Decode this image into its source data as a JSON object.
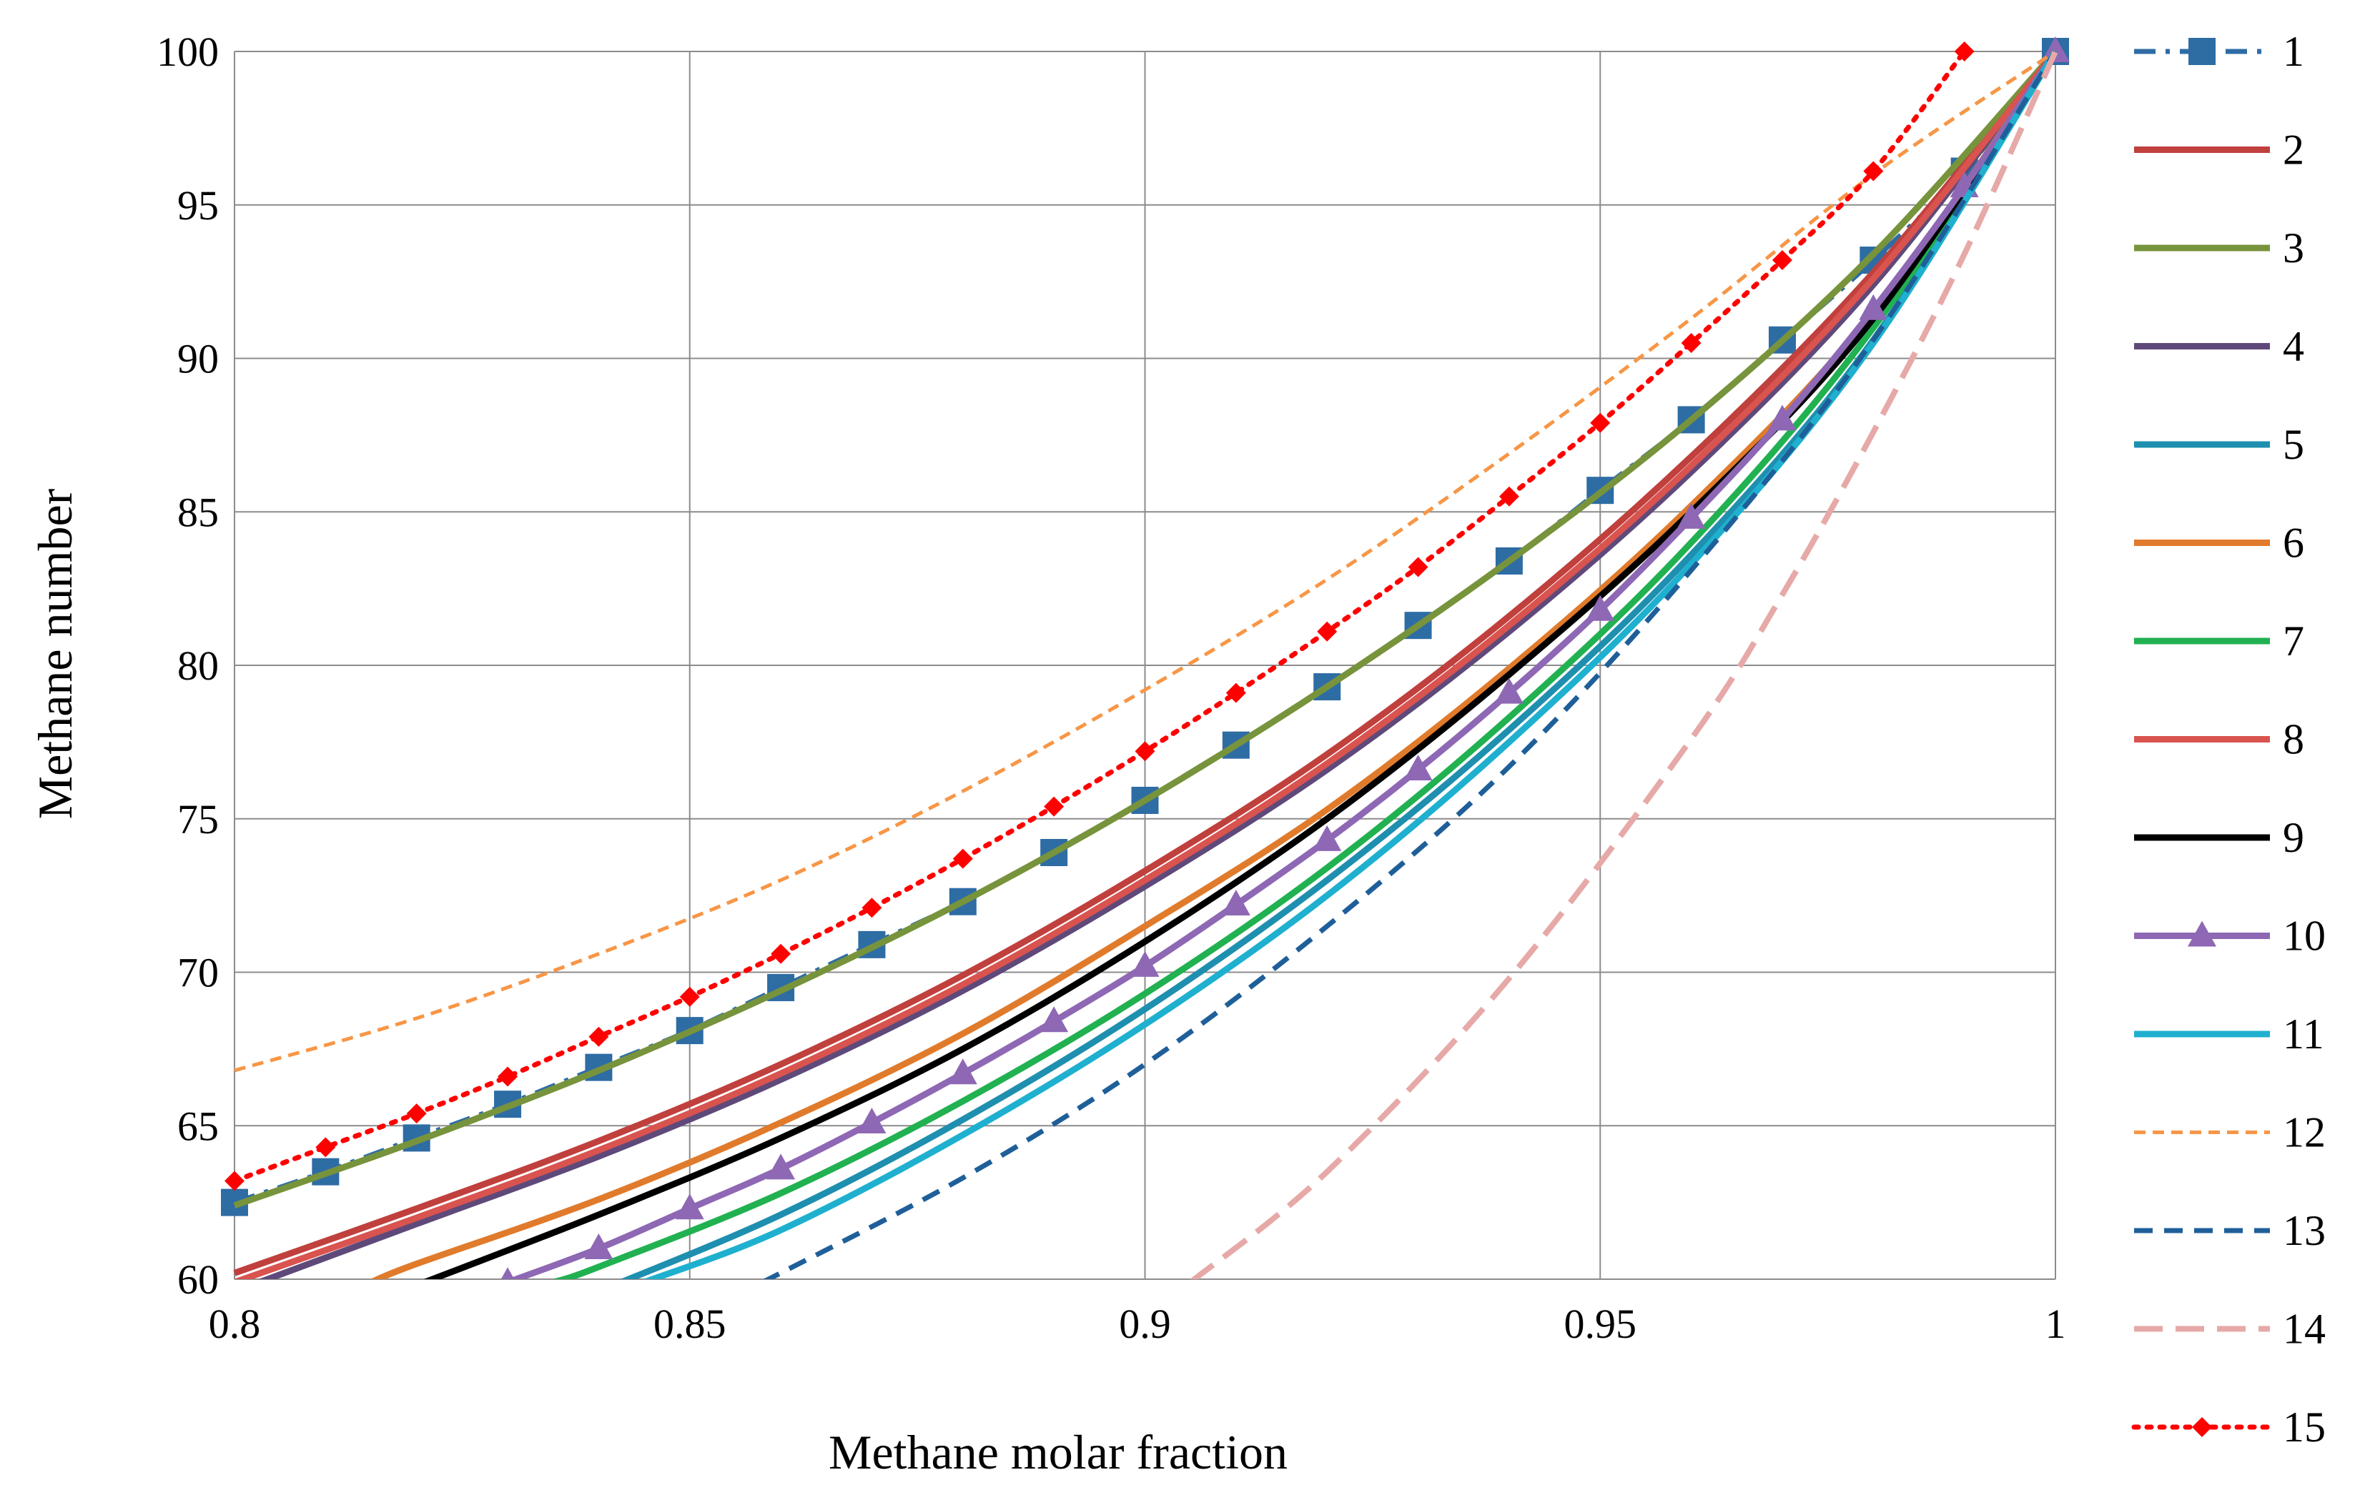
{
  "chart_data": {
    "type": "line",
    "title": "",
    "xlabel": "Methane molar fraction",
    "ylabel": "Methane number",
    "xlim": [
      0.8,
      1.0
    ],
    "ylim": [
      60,
      100
    ],
    "grid": true,
    "legend_position": "right",
    "x_ticks": [
      {
        "value": 0.8,
        "label": "0.8"
      },
      {
        "value": 0.85,
        "label": "0.85"
      },
      {
        "value": 0.9,
        "label": "0.9"
      },
      {
        "value": 0.95,
        "label": "0.95"
      },
      {
        "value": 1.0,
        "label": "1"
      }
    ],
    "y_ticks": [
      {
        "value": 60,
        "label": "60"
      },
      {
        "value": 65,
        "label": "65"
      },
      {
        "value": 70,
        "label": "70"
      },
      {
        "value": 75,
        "label": "75"
      },
      {
        "value": 80,
        "label": "80"
      },
      {
        "value": 85,
        "label": "85"
      },
      {
        "value": 90,
        "label": "90"
      },
      {
        "value": 95,
        "label": "95"
      },
      {
        "value": 100,
        "label": "100"
      }
    ],
    "series": [
      {
        "name": "1",
        "color": "#2E6CA4",
        "dash": "long-dash-dot",
        "marker": "square",
        "x": [
          0.8,
          0.81,
          0.82,
          0.83,
          0.84,
          0.85,
          0.86,
          0.87,
          0.88,
          0.89,
          0.9,
          0.91,
          0.92,
          0.93,
          0.94,
          0.95,
          0.96,
          0.97,
          0.98,
          0.99,
          1.0
        ],
        "y": [
          62.5,
          63.5,
          64.6,
          65.7,
          66.9,
          68.1,
          69.5,
          70.9,
          72.3,
          73.9,
          75.6,
          77.4,
          79.3,
          81.3,
          83.4,
          85.7,
          88.0,
          90.6,
          93.2,
          96.1,
          100
        ]
      },
      {
        "name": "2",
        "color": "#C0403D",
        "dash": "solid",
        "marker": "none",
        "x": [
          0.8,
          0.82,
          0.84,
          0.86,
          0.88,
          0.9,
          0.92,
          0.94,
          0.96,
          0.98,
          1.0
        ],
        "y": [
          60.2,
          62.3,
          64.5,
          67.0,
          69.9,
          73.3,
          77.1,
          81.6,
          86.8,
          92.8,
          100
        ]
      },
      {
        "name": "3",
        "color": "#77933C",
        "dash": "solid",
        "marker": "none",
        "x": [
          0.8,
          0.82,
          0.84,
          0.86,
          0.88,
          0.9,
          0.92,
          0.94,
          0.96,
          0.98,
          1.0
        ],
        "y": [
          62.4,
          64.5,
          66.8,
          69.4,
          72.3,
          75.6,
          79.3,
          83.4,
          88.0,
          93.4,
          100
        ]
      },
      {
        "name": "4",
        "color": "#5F497A",
        "dash": "solid",
        "marker": "none",
        "x": [
          0.8,
          0.82,
          0.84,
          0.86,
          0.88,
          0.9,
          0.92,
          0.94,
          0.96,
          0.98,
          1.0
        ],
        "y": [
          59.6,
          61.8,
          64.0,
          66.5,
          69.4,
          72.8,
          76.6,
          81.1,
          86.3,
          92.4,
          100
        ]
      },
      {
        "name": "5",
        "color": "#1F8FAF",
        "dash": "solid",
        "marker": "none",
        "x": [
          0.84,
          0.86,
          0.88,
          0.9,
          0.92,
          0.94,
          0.96,
          0.98,
          1.0
        ],
        "y": [
          59.6,
          62.1,
          65.2,
          68.8,
          73.0,
          77.9,
          83.6,
          90.6,
          100
        ]
      },
      {
        "name": "6",
        "color": "#E07B2C",
        "dash": "solid",
        "marker": "none",
        "x": [
          0.815,
          0.82,
          0.84,
          0.86,
          0.88,
          0.9,
          0.92,
          0.94,
          0.96,
          0.98,
          1.0
        ],
        "y": [
          59.9,
          60.5,
          62.6,
          65.1,
          68.0,
          71.5,
          75.3,
          79.9,
          85.2,
          91.5,
          100
        ]
      },
      {
        "name": "7",
        "color": "#21B151",
        "dash": "solid",
        "marker": "none",
        "x": [
          0.835,
          0.84,
          0.86,
          0.88,
          0.9,
          0.92,
          0.94,
          0.96,
          0.98,
          1.0
        ],
        "y": [
          59.9,
          60.4,
          62.8,
          65.8,
          69.3,
          73.4,
          78.3,
          84.0,
          91.0,
          100
        ]
      },
      {
        "name": "8",
        "color": "#D9534F",
        "dash": "solid",
        "marker": "none",
        "x": [
          0.8,
          0.82,
          0.84,
          0.86,
          0.88,
          0.9,
          0.92,
          0.94,
          0.96,
          0.98,
          1.0
        ],
        "y": [
          59.9,
          62.0,
          64.2,
          66.7,
          69.6,
          73.0,
          76.8,
          81.3,
          86.5,
          92.6,
          100
        ]
      },
      {
        "name": "9",
        "color": "#000000",
        "dash": "solid",
        "marker": "none",
        "x": [
          0.82,
          0.84,
          0.86,
          0.88,
          0.9,
          0.92,
          0.94,
          0.96,
          0.98,
          1.0
        ],
        "y": [
          59.8,
          62.1,
          64.6,
          67.5,
          71.0,
          75.0,
          79.7,
          85.0,
          91.3,
          100
        ]
      },
      {
        "name": "10",
        "color": "#8E68B4",
        "dash": "solid",
        "marker": "triangle",
        "x": [
          0.83,
          0.84,
          0.85,
          0.86,
          0.87,
          0.88,
          0.89,
          0.9,
          0.91,
          0.92,
          0.93,
          0.94,
          0.95,
          0.96,
          0.97,
          0.98,
          0.99,
          1.0
        ],
        "y": [
          59.9,
          61.0,
          62.3,
          63.6,
          65.1,
          66.7,
          68.4,
          70.2,
          72.2,
          74.3,
          76.6,
          79.1,
          81.8,
          84.8,
          88.0,
          91.6,
          95.6,
          100
        ]
      },
      {
        "name": "11",
        "color": "#1FB0CF",
        "dash": "solid",
        "marker": "none",
        "x": [
          0.845,
          0.86,
          0.88,
          0.9,
          0.92,
          0.94,
          0.96,
          0.98,
          1.0
        ],
        "y": [
          59.9,
          61.6,
          64.7,
          68.3,
          72.5,
          77.5,
          83.3,
          90.5,
          100
        ]
      },
      {
        "name": "12",
        "color": "#F79646",
        "dash": "short-dash",
        "marker": "none",
        "x": [
          0.8,
          0.82,
          0.84,
          0.86,
          0.88,
          0.9,
          0.92,
          0.94,
          0.96,
          0.98,
          1.0
        ],
        "y": [
          66.8,
          68.5,
          70.6,
          73.0,
          75.9,
          79.2,
          82.8,
          86.9,
          91.3,
          96.0,
          100
        ]
      },
      {
        "name": "13",
        "color": "#1F5F99",
        "dash": "dash",
        "marker": "none",
        "x": [
          0.858,
          0.88,
          0.9,
          0.92,
          0.94,
          0.96,
          0.98,
          1.0
        ],
        "y": [
          59.9,
          63.3,
          67.0,
          71.5,
          76.7,
          83.1,
          90.6,
          100
        ]
      },
      {
        "name": "14",
        "color": "#E6A9A7",
        "dash": "long-dash",
        "marker": "none",
        "x": [
          0.905,
          0.92,
          0.94,
          0.96,
          0.97,
          0.98,
          0.99,
          1.0
        ],
        "y": [
          59.9,
          63.5,
          69.8,
          77.6,
          82.3,
          87.6,
          93.4,
          100
        ]
      },
      {
        "name": "15",
        "color": "#FF0000",
        "dash": "dot",
        "marker": "diamond",
        "x": [
          0.8,
          0.81,
          0.82,
          0.83,
          0.84,
          0.85,
          0.86,
          0.87,
          0.88,
          0.89,
          0.9,
          0.91,
          0.92,
          0.93,
          0.94,
          0.95,
          0.96,
          0.97,
          0.98,
          0.99
        ],
        "y": [
          63.2,
          64.3,
          65.4,
          66.6,
          67.9,
          69.2,
          70.6,
          72.1,
          73.7,
          75.4,
          77.2,
          79.1,
          81.1,
          83.2,
          85.5,
          87.9,
          90.5,
          93.2,
          96.1,
          100
        ]
      }
    ]
  }
}
